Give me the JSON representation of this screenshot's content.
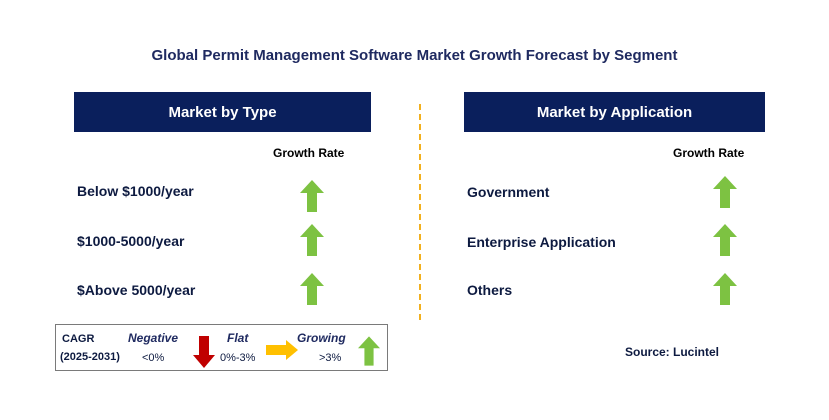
{
  "title": "Global Permit Management Software Market Growth Forecast by Segment",
  "left_panel": {
    "header": "Market by Type",
    "growth_rate_label": "Growth Rate",
    "rows": [
      {
        "label": "Below $1000/year",
        "trend": "growing"
      },
      {
        "label": "$1000-5000/year",
        "trend": "growing"
      },
      {
        "label": "$Above 5000/year",
        "trend": "growing"
      }
    ]
  },
  "right_panel": {
    "header": "Market by Application",
    "growth_rate_label": "Growth Rate",
    "rows": [
      {
        "label": "Government",
        "trend": "growing"
      },
      {
        "label": "Enterprise Application",
        "trend": "growing"
      },
      {
        "label": "Others",
        "trend": "growing"
      }
    ]
  },
  "legend": {
    "cagr_label": "CAGR",
    "period": "(2025-2031)",
    "negative_label": "Negative",
    "negative_range": "<0%",
    "flat_label": "Flat",
    "flat_range": "0%-3%",
    "growing_label": "Growing",
    "growing_range": ">3%"
  },
  "source": "Source: Lucintel",
  "colors": {
    "header_bg": "#0a1f5c",
    "growing_arrow": "#7dc242",
    "negative_arrow": "#c00000",
    "flat_arrow": "#ffc000",
    "divider": "#f2b01e"
  }
}
